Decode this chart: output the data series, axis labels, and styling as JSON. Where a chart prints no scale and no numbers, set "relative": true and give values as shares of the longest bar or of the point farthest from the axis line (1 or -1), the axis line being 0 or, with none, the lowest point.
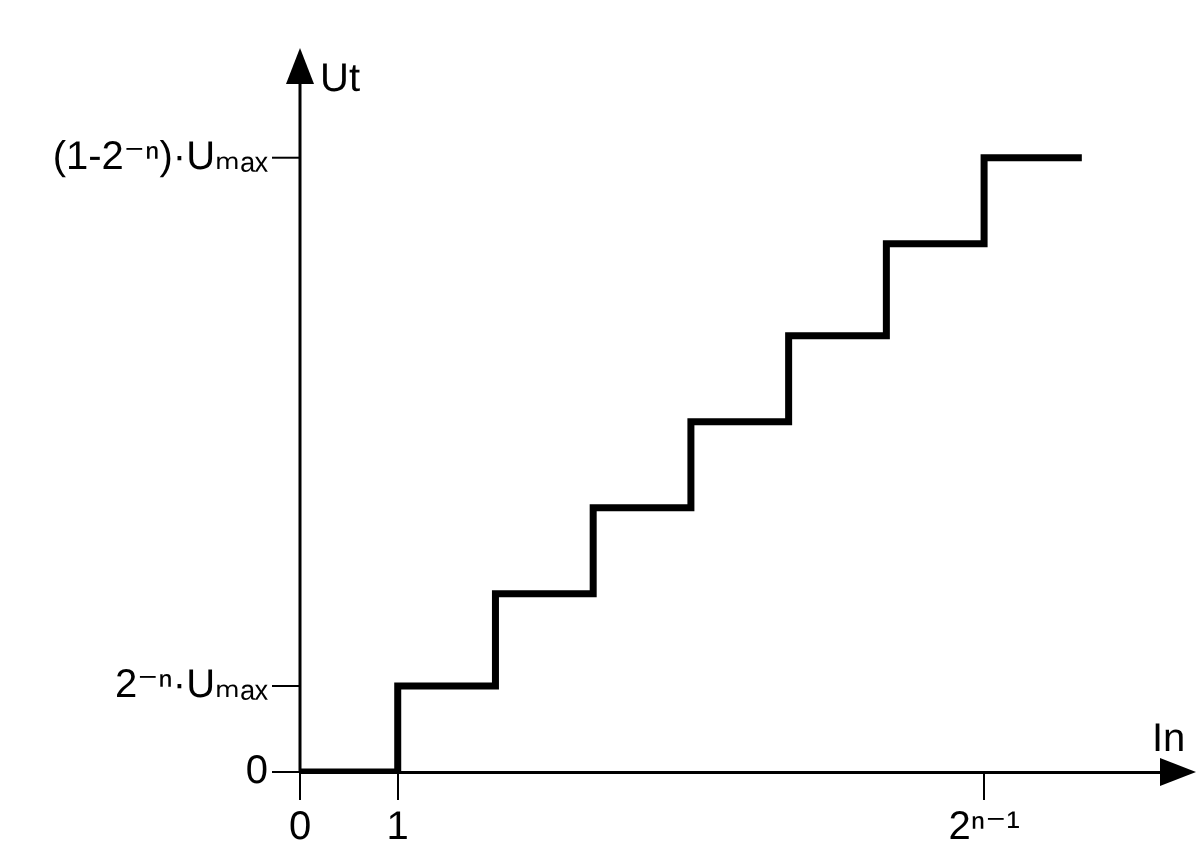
{
  "chart_data": {
    "type": "step",
    "xlabel": "In",
    "ylabel": "Ut",
    "relative": true,
    "categories": [
      "0",
      "1",
      null,
      null,
      null,
      null,
      null,
      "2ⁿ⁻¹",
      null
    ],
    "series": [
      {
        "color": "#000000",
        "values": [
          0,
          0.14,
          0.29,
          0.43,
          0.57,
          0.71,
          0.86,
          1,
          1
        ]
      }
    ],
    "annotations": [
      "0",
      "2⁻ⁿ·Uₘₐₓ",
      "(1-2⁻ⁿ)·Uₘₐₓ"
    ],
    "grid": false,
    "legend": false,
    "marker": "none",
    "line_style": "solid"
  }
}
